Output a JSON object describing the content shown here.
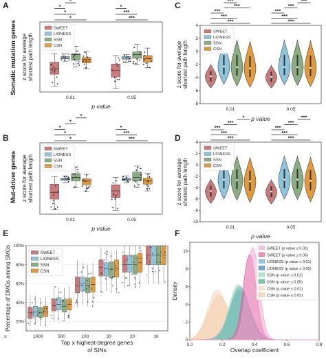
{
  "figure": {
    "panel_letters": [
      "A",
      "B",
      "C",
      "D",
      "E",
      "F"
    ],
    "row_labels": [
      "Somatic mutation genes",
      "Mut-driver genes"
    ]
  },
  "colors": {
    "SWEET": "#c97a7a",
    "LIONESS": "#8fc4de",
    "SSN": "#8aae82",
    "CSN": "#e39a3c"
  },
  "chart_data": [
    {
      "id": "A",
      "type": "box",
      "ylabel": "z score for average shortest path length",
      "xlabel": "p value",
      "categories": [
        "0.01",
        "0.05"
      ],
      "legend": [
        "SWEET",
        "LIONESS",
        "SSN",
        "CSN"
      ],
      "legend_position": "upper-left",
      "yrange": [
        -4.5,
        3
      ],
      "series": [
        {
          "name": "SWEET",
          "boxes": [
            {
              "q1": -2.6,
              "median": -2.0,
              "q3": -1.3,
              "min": -3.9,
              "max": -0.4
            },
            {
              "q1": -2.9,
              "median": -2.2,
              "q3": -1.5,
              "min": -4.1,
              "max": -0.6
            }
          ]
        },
        {
          "name": "LIONESS",
          "boxes": [
            {
              "q1": -0.95,
              "median": -0.85,
              "q3": -0.7,
              "min": -1.2,
              "max": -0.4
            },
            {
              "q1": -1.0,
              "median": -0.85,
              "q3": -0.7,
              "min": -1.3,
              "max": -0.5
            }
          ]
        },
        {
          "name": "SSN",
          "boxes": [
            {
              "q1": -1.1,
              "median": -0.5,
              "q3": -0.4,
              "min": -1.8,
              "max": 0.4
            },
            {
              "q1": -0.9,
              "median": -0.5,
              "q3": -0.2,
              "min": -1.6,
              "max": 0.6
            }
          ]
        },
        {
          "name": "CSN",
          "boxes": [
            {
              "q1": -1.4,
              "median": -1.0,
              "q3": -0.8,
              "min": -2.0,
              "max": -0.2
            },
            {
              "q1": -1.3,
              "median": -0.9,
              "q3": -0.6,
              "min": -1.9,
              "max": 0.2
            }
          ]
        }
      ],
      "significance": [
        {
          "group": 0,
          "from": 0,
          "to": 3,
          "label": "*"
        },
        {
          "group": 0,
          "from": 0,
          "to": 2,
          "label": "*"
        },
        {
          "group": 0,
          "from": 0,
          "to": 1,
          "label": "*"
        },
        {
          "group": 0,
          "from": 1,
          "to": 2,
          "label": "*"
        },
        {
          "group": 0,
          "from": 2,
          "to": 3,
          "label": "*"
        },
        {
          "group": 1,
          "from": 0,
          "to": 3,
          "label": "***"
        },
        {
          "group": 1,
          "from": 0,
          "to": 2,
          "label": "***"
        },
        {
          "group": 1,
          "from": 0,
          "to": 1,
          "label": "*"
        }
      ]
    },
    {
      "id": "B",
      "type": "box",
      "ylabel": "z score for average shortest path length",
      "xlabel": "p value",
      "categories": [
        "0.01",
        "0.05"
      ],
      "legend": [
        "SWEET",
        "LIONESS",
        "SSN",
        "CSN"
      ],
      "legend_position": "upper-left",
      "yrange": [
        -5.5,
        4
      ],
      "series": [
        {
          "name": "SWEET",
          "boxes": [
            {
              "q1": -3.5,
              "median": -2.6,
              "q3": -1.5,
              "min": -4.9,
              "max": -0.5
            },
            {
              "q1": -3.3,
              "median": -2.4,
              "q3": -1.6,
              "min": -5.0,
              "max": -0.6
            }
          ]
        },
        {
          "name": "LIONESS",
          "boxes": [
            {
              "q1": -1.0,
              "median": -0.85,
              "q3": -0.7,
              "min": -1.3,
              "max": -0.4
            },
            {
              "q1": -1.0,
              "median": -0.85,
              "q3": -0.7,
              "min": -1.3,
              "max": -0.4
            }
          ]
        },
        {
          "name": "SSN",
          "boxes": [
            {
              "q1": -1.1,
              "median": -0.6,
              "q3": -0.1,
              "min": -2.0,
              "max": 0.8
            },
            {
              "q1": -1.1,
              "median": -0.6,
              "q3": 0.1,
              "min": -2.0,
              "max": 0.9
            }
          ]
        },
        {
          "name": "CSN",
          "boxes": [
            {
              "q1": -1.6,
              "median": -1.1,
              "q3": -0.8,
              "min": -2.5,
              "max": -0.2
            },
            {
              "q1": -1.5,
              "median": -1.0,
              "q3": -0.7,
              "min": -2.4,
              "max": -0.1
            }
          ]
        }
      ],
      "significance": [
        {
          "group": 0,
          "from": 0,
          "to": 3,
          "label": "*"
        },
        {
          "group": 0,
          "from": 0,
          "to": 2,
          "label": "*"
        },
        {
          "group": 0,
          "from": 0,
          "to": 1,
          "label": "*"
        },
        {
          "group": 0,
          "from": 1,
          "to": 2,
          "label": "*"
        },
        {
          "group": 0,
          "from": 2,
          "to": 3,
          "label": "*"
        },
        {
          "group": 1,
          "from": 0,
          "to": 3,
          "label": "***"
        },
        {
          "group": 1,
          "from": 0,
          "to": 2,
          "label": "***"
        },
        {
          "group": 1,
          "from": 0,
          "to": 1,
          "label": "*"
        }
      ]
    },
    {
      "id": "C",
      "type": "violin",
      "ylabel": "z score for average shortest path length",
      "xlabel": "p value",
      "categories": [
        "0.01",
        "0.05"
      ],
      "legend": [
        "SWEET",
        "LIONESS",
        "SSN",
        "CSN"
      ],
      "legend_position": "upper-left",
      "yrange": [
        -8,
        4
      ],
      "yticks": [
        -8,
        -6,
        -4,
        -2,
        0,
        2,
        4
      ],
      "series": [
        {
          "name": "SWEET",
          "violins": [
            {
              "center": -3.8,
              "low": -5.6,
              "high": -2.0
            },
            {
              "center": -3.9,
              "low": -5.6,
              "high": -2.1
            }
          ]
        },
        {
          "name": "LIONESS",
          "violins": [
            {
              "center": -2.3,
              "low": -5.0,
              "high": 1.6
            },
            {
              "center": -2.4,
              "low": -5.1,
              "high": 1.8
            }
          ]
        },
        {
          "name": "SSN",
          "violins": [
            {
              "center": -2.4,
              "low": -5.3,
              "high": 1.8
            },
            {
              "center": -2.4,
              "low": -5.2,
              "high": 1.8
            }
          ]
        },
        {
          "name": "CSN",
          "violins": [
            {
              "center": -2.6,
              "low": -5.5,
              "high": 1.6
            },
            {
              "center": -2.5,
              "low": -5.4,
              "high": 1.7
            }
          ]
        }
      ],
      "significance": [
        {
          "group": 0,
          "from": 0,
          "to": 3,
          "label": "***"
        },
        {
          "group": 0,
          "from": 0,
          "to": 2,
          "label": "***"
        },
        {
          "group": 0,
          "from": 0,
          "to": 1,
          "label": "***"
        },
        {
          "group": 0,
          "from": 1,
          "to": 3,
          "label": "***"
        },
        {
          "group": 0,
          "from": 1,
          "to": 2,
          "label": "***"
        },
        {
          "group": 0,
          "from": 2,
          "to": 3,
          "label": "***"
        },
        {
          "group": 1,
          "from": 0,
          "to": 3,
          "label": "***"
        },
        {
          "group": 1,
          "from": 0,
          "to": 2,
          "label": "***"
        },
        {
          "group": 1,
          "from": 0,
          "to": 1,
          "label": "***"
        },
        {
          "group": 1,
          "from": 1,
          "to": 2,
          "label": "***"
        },
        {
          "group": 1,
          "from": 2,
          "to": 3,
          "label": "***"
        }
      ]
    },
    {
      "id": "D",
      "type": "violin",
      "ylabel": "z score for average shortest path length",
      "xlabel": "p value",
      "categories": [
        "0.01",
        "0.05"
      ],
      "legend": [
        "SWEET",
        "LIONESS",
        "SSN",
        "CSN"
      ],
      "legend_position": "upper-left",
      "yrange": [
        -10,
        4
      ],
      "yticks": [
        -10,
        -8,
        -6,
        -4,
        -2,
        0,
        2,
        4
      ],
      "series": [
        {
          "name": "SWEET",
          "violins": [
            {
              "center": -4.6,
              "low": -6.8,
              "high": -2.5
            },
            {
              "center": -4.7,
              "low": -6.9,
              "high": -2.6
            }
          ]
        },
        {
          "name": "LIONESS",
          "violins": [
            {
              "center": -2.6,
              "low": -6.0,
              "high": 1.4
            },
            {
              "center": -2.6,
              "low": -6.0,
              "high": 1.6
            }
          ]
        },
        {
          "name": "SSN",
          "violins": [
            {
              "center": -2.7,
              "low": -6.2,
              "high": 1.6
            },
            {
              "center": -2.6,
              "low": -6.1,
              "high": 1.6
            }
          ]
        },
        {
          "name": "CSN",
          "violins": [
            {
              "center": -2.9,
              "low": -6.6,
              "high": 1.3
            },
            {
              "center": -2.8,
              "low": -6.5,
              "high": 1.4
            }
          ]
        }
      ],
      "significance": [
        {
          "group": 0,
          "from": 0,
          "to": 3,
          "label": "***"
        },
        {
          "group": 0,
          "from": 0,
          "to": 2,
          "label": "***"
        },
        {
          "group": 0,
          "from": 0,
          "to": 1,
          "label": "***"
        },
        {
          "group": 0,
          "from": 1,
          "to": 2,
          "label": "***"
        },
        {
          "group": 0,
          "from": 2,
          "to": 3,
          "label": "*"
        },
        {
          "group": 1,
          "from": 0,
          "to": 3,
          "label": "***"
        },
        {
          "group": 1,
          "from": 0,
          "to": 2,
          "label": "***"
        },
        {
          "group": 1,
          "from": 0,
          "to": 1,
          "label": "***"
        },
        {
          "group": 1,
          "from": 1,
          "to": 2,
          "label": "***"
        },
        {
          "group": 1,
          "from": 2,
          "to": 3,
          "label": "***"
        }
      ]
    },
    {
      "id": "E",
      "type": "box",
      "ylabel": "Percentage of DMGs among SMGs",
      "xlabel": "Top x highest-degree genes of SINs",
      "x_prefix": "x:",
      "categories": [
        "1000",
        "500",
        "100",
        "30",
        "20",
        "10"
      ],
      "legend": [
        "SWEET",
        "LIONESS",
        "SSN",
        "CSN"
      ],
      "legend_position": "upper-left",
      "yrange": [
        10,
        100
      ],
      "yticks": [
        20,
        40,
        60,
        80,
        100
      ],
      "ytick_format": "percent",
      "series": [
        {
          "name": "SWEET",
          "boxes": [
            {
              "q1": 23,
              "median": 29,
              "q3": 35,
              "min": 15,
              "max": 48
            },
            {
              "q1": 31,
              "median": 37,
              "q3": 44,
              "min": 20,
              "max": 58
            },
            {
              "q1": 50,
              "median": 58,
              "q3": 67,
              "min": 35,
              "max": 85
            },
            {
              "q1": 68,
              "median": 77,
              "q3": 85,
              "min": 50,
              "max": 98
            },
            {
              "q1": 72,
              "median": 80,
              "q3": 90,
              "min": 55,
              "max": 100
            },
            {
              "q1": 80,
              "median": 90,
              "q3": 100,
              "min": 60,
              "max": 100
            }
          ]
        },
        {
          "name": "LIONESS",
          "boxes": [
            {
              "q1": 25,
              "median": 30,
              "q3": 36,
              "min": 16,
              "max": 47
            },
            {
              "q1": 32,
              "median": 38,
              "q3": 45,
              "min": 22,
              "max": 56
            },
            {
              "q1": 52,
              "median": 60,
              "q3": 67,
              "min": 37,
              "max": 82
            },
            {
              "q1": 68,
              "median": 76,
              "q3": 82,
              "min": 52,
              "max": 95
            },
            {
              "q1": 72,
              "median": 80,
              "q3": 90,
              "min": 57,
              "max": 100
            },
            {
              "q1": 80,
              "median": 90,
              "q3": 100,
              "min": 60,
              "max": 100
            }
          ]
        },
        {
          "name": "SSN",
          "boxes": [
            {
              "q1": 24,
              "median": 29,
              "q3": 35,
              "min": 15,
              "max": 45
            },
            {
              "q1": 30,
              "median": 36,
              "q3": 43,
              "min": 20,
              "max": 55
            },
            {
              "q1": 50,
              "median": 58,
              "q3": 66,
              "min": 36,
              "max": 80
            },
            {
              "q1": 66,
              "median": 75,
              "q3": 83,
              "min": 50,
              "max": 95
            },
            {
              "q1": 70,
              "median": 80,
              "q3": 90,
              "min": 55,
              "max": 100
            },
            {
              "q1": 80,
              "median": 90,
              "q3": 100,
              "min": 60,
              "max": 100
            }
          ]
        },
        {
          "name": "CSN",
          "boxes": [
            {
              "q1": 25,
              "median": 30,
              "q3": 36,
              "min": 16,
              "max": 46
            },
            {
              "q1": 32,
              "median": 38,
              "q3": 44,
              "min": 22,
              "max": 57
            },
            {
              "q1": 51,
              "median": 59,
              "q3": 67,
              "min": 36,
              "max": 82
            },
            {
              "q1": 67,
              "median": 76,
              "q3": 85,
              "min": 50,
              "max": 96
            },
            {
              "q1": 72,
              "median": 82,
              "q3": 92,
              "min": 55,
              "max": 100
            },
            {
              "q1": 80,
              "median": 90,
              "q3": 100,
              "min": 60,
              "max": 100
            }
          ]
        }
      ]
    },
    {
      "id": "F",
      "type": "area",
      "xlabel": "Overlap coefficient",
      "ylabel": "Density",
      "xrange": [
        0,
        0.8
      ],
      "yrange": [
        0,
        11
      ],
      "xticks": [
        0.0,
        0.2,
        0.4,
        0.6,
        0.8
      ],
      "yticks": [
        0,
        2,
        4,
        6,
        8,
        10
      ],
      "legend_position": "upper-right",
      "series": [
        {
          "name": "SWEET (p value ≤ 0.01)",
          "color": "#f0a6cf",
          "peak_x": 0.39,
          "peak_y": 10.4,
          "sd": 0.04
        },
        {
          "name": "SWEET (p value ≤ 0.05)",
          "color": "#e0609a",
          "peak_x": 0.37,
          "peak_y": 9.6,
          "sd": 0.04
        },
        {
          "name": "LIONESS (p value ≤ 0.01)",
          "color": "#6fa8d6",
          "peak_x": 0.31,
          "peak_y": 6.0,
          "sd": 0.06
        },
        {
          "name": "LIONESS (p value ≤ 0.05)",
          "color": "#3d7fbf",
          "peak_x": 0.31,
          "peak_y": 5.5,
          "sd": 0.065
        },
        {
          "name": "SSN (p value ≤ 0.01)",
          "color": "#8fd6b6",
          "peak_x": 0.3,
          "peak_y": 6.2,
          "sd": 0.055
        },
        {
          "name": "SSN (p value ≤ 0.05)",
          "color": "#3fae8c",
          "peak_x": 0.31,
          "peak_y": 5.7,
          "sd": 0.06
        },
        {
          "name": "CSN (p value ≤ 0.01)",
          "color": "#f6d6b8",
          "peak_x": 0.17,
          "peak_y": 5.6,
          "sd": 0.06
        },
        {
          "name": "CSN (p value ≤ 0.05)",
          "color": "#f0c6a0",
          "peak_x": 0.18,
          "peak_y": 5.0,
          "sd": 0.065
        }
      ]
    }
  ]
}
